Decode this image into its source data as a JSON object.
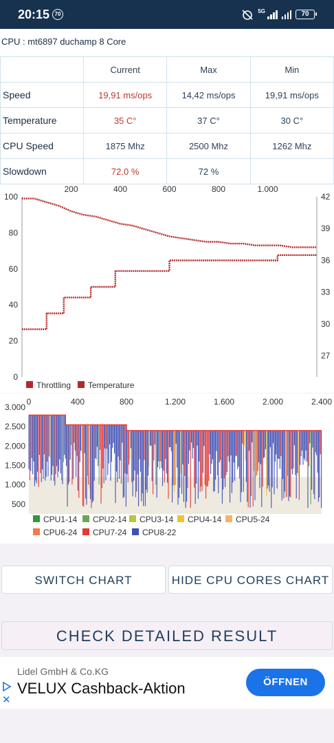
{
  "status": {
    "time": "20:15",
    "notif_count": "70",
    "network": "5G",
    "battery": "70"
  },
  "cpu_title": "CPU : mt6897 duchamp 8 Core",
  "table": {
    "headers": [
      "Current",
      "Max",
      "Min"
    ],
    "rows": [
      {
        "label": "Speed",
        "current": "19,91 ms/ops",
        "max": "14,42 ms/ops",
        "min": "19,91 ms/ops"
      },
      {
        "label": "Temperature",
        "current": "35 C°",
        "max": "37 C°",
        "min": "30 C°"
      },
      {
        "label": "CPU Speed",
        "current": "1875 Mhz",
        "max": "2500 Mhz",
        "min": "1262 Mhz"
      },
      {
        "label": "Slowdown",
        "current": "72.0 %",
        "max": "72 %",
        "min": ""
      }
    ]
  },
  "colors": {
    "red": "#b5282a",
    "blue": "#3f51b5",
    "header": "#16324f"
  },
  "chart_data": [
    {
      "type": "line",
      "x_ticks": [
        "200",
        "400",
        "600",
        "800",
        "1.000"
      ],
      "xlim": [
        0,
        1200
      ],
      "y_left_ticks": [
        "0",
        "20",
        "40",
        "60",
        "80",
        "100"
      ],
      "ylim_left": [
        0,
        100
      ],
      "y_right_ticks": [
        "27",
        "30",
        "33",
        "36",
        "39",
        "42"
      ],
      "ylim_right": [
        25,
        42
      ],
      "legend": [
        "Throttling",
        "Temperature"
      ],
      "legend_position": "bottom-left",
      "series": [
        {
          "name": "Throttling",
          "axis": "left",
          "x": [
            0,
            50,
            100,
            150,
            200,
            250,
            300,
            350,
            400,
            450,
            500,
            550,
            600,
            650,
            700,
            750,
            800,
            850,
            900,
            950,
            1000,
            1050,
            1100,
            1200
          ],
          "values": [
            99,
            99,
            97,
            95,
            92,
            90,
            89,
            87,
            85,
            84,
            82,
            80,
            78,
            77,
            76,
            75,
            75,
            74,
            74,
            73,
            73,
            73,
            72,
            72
          ]
        },
        {
          "name": "Temperature",
          "axis": "right",
          "x": [
            0,
            100,
            100,
            170,
            170,
            280,
            280,
            380,
            380,
            600,
            600,
            1040,
            1040,
            1200
          ],
          "values": [
            29.5,
            29.5,
            31.0,
            31.0,
            32.5,
            32.5,
            33.5,
            33.5,
            35.0,
            35.0,
            36.0,
            36.0,
            36.5,
            36.5
          ]
        }
      ]
    },
    {
      "type": "area",
      "x_ticks": [
        "0",
        "400",
        "800",
        "1.200",
        "1.600",
        "2.000",
        "2.400"
      ],
      "xlim": [
        0,
        2400
      ],
      "y_ticks": [
        "500",
        "1.000",
        "1.500",
        "2.000",
        "2.500",
        "3.000"
      ],
      "ylim": [
        250,
        3000
      ],
      "legend": [
        "CPU1-14",
        "CPU2-14",
        "CPU3-14",
        "CPU4-14",
        "CPU5-24",
        "CPU6-24",
        "CPU7-24",
        "CPU8-22"
      ],
      "legend_colors": [
        "#2e9a3a",
        "#6aa84f",
        "#b5c93a",
        "#f1c232",
        "#f6b26b",
        "#ef7b4a",
        "#e53935",
        "#3f51b5"
      ],
      "legend_position": "bottom-left",
      "max_line": {
        "x": [
          0,
          300,
          300,
          800,
          800,
          2400
        ],
        "values": [
          2800,
          2800,
          2550,
          2550,
          2400,
          2400
        ]
      },
      "baseline": 1200
    }
  ],
  "buttons": {
    "switch_chart": "SWITCH CHART",
    "hide_cores": "HIDE CPU CORES CHART",
    "check_result": "CHECK DETAILED RESULT"
  },
  "ad": {
    "advertiser": "Lidel GmbH & Co.KG",
    "headline": "VELUX Cashback-Aktion",
    "cta": "ÖFFNEN"
  }
}
